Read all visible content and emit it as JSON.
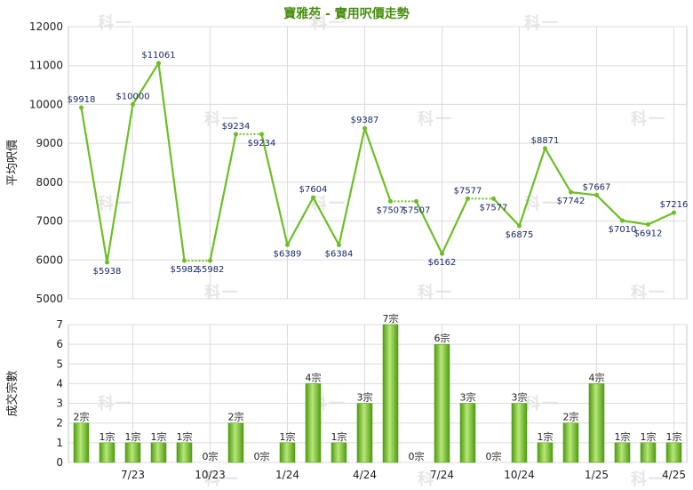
{
  "title": "寶雅苑 - 實用呎價走勢",
  "watermark": "科一",
  "colors": {
    "line": "#6cbf24",
    "dotted": "#6cbf24",
    "bar_light": "#b8e878",
    "bar_dark": "#4e9a12",
    "grid": "#dcdcdc",
    "axis_text": "#222222",
    "label_text": "#1a2a66",
    "title": "#4a8f10"
  },
  "chart_data": [
    {
      "type": "line",
      "ylabel": "平均呎價",
      "ylim": [
        5000,
        12000
      ],
      "yticks": [
        5000,
        6000,
        7000,
        8000,
        9000,
        10000,
        11000,
        12000
      ],
      "grid": true,
      "points": [
        {
          "slot": 0,
          "value": 9918,
          "label": "$9918"
        },
        {
          "slot": 1,
          "value": 5938,
          "label": "$5938"
        },
        {
          "slot": 2,
          "value": 10000,
          "label": "$10000"
        },
        {
          "slot": 3,
          "value": 11061,
          "label": "$11061"
        },
        {
          "slot": 4,
          "value": 5982,
          "label": "$5982"
        },
        {
          "slot": 5,
          "value": 5982,
          "label": "$5982",
          "carried": true
        },
        {
          "slot": 6,
          "value": 9234,
          "label": "$9234"
        },
        {
          "slot": 7,
          "value": 9234,
          "label": "$9234",
          "carried": true
        },
        {
          "slot": 8,
          "value": 6389,
          "label": "$6389"
        },
        {
          "slot": 9,
          "value": 7604,
          "label": "$7604"
        },
        {
          "slot": 10,
          "value": 6384,
          "label": "$6384"
        },
        {
          "slot": 11,
          "value": 9387,
          "label": "$9387"
        },
        {
          "slot": 12,
          "value": 7507,
          "label": "$7507"
        },
        {
          "slot": 13,
          "value": 7507,
          "label": "$7507",
          "carried": true
        },
        {
          "slot": 14,
          "value": 6162,
          "label": "$6162"
        },
        {
          "slot": 15,
          "value": 7577,
          "label": "$7577"
        },
        {
          "slot": 16,
          "value": 7577,
          "label": "$7577",
          "carried": true
        },
        {
          "slot": 17,
          "value": 6875,
          "label": "$6875"
        },
        {
          "slot": 18,
          "value": 8871,
          "label": "$8871"
        },
        {
          "slot": 19,
          "value": 7742,
          "label": "$7742"
        },
        {
          "slot": 20,
          "value": 7667,
          "label": "$7667"
        },
        {
          "slot": 21,
          "value": 7010,
          "label": "$7010"
        },
        {
          "slot": 22,
          "value": 6912,
          "label": "$6912"
        },
        {
          "slot": 23,
          "value": 7216,
          "label": "$7216"
        }
      ]
    },
    {
      "type": "bar",
      "ylabel": "成交宗數",
      "ylim": [
        0,
        7
      ],
      "yticks": [
        0,
        1,
        2,
        3,
        4,
        5,
        6,
        7
      ],
      "grid": true,
      "values": [
        2,
        1,
        1,
        1,
        1,
        0,
        2,
        0,
        1,
        4,
        1,
        3,
        7,
        0,
        6,
        3,
        0,
        3,
        1,
        2,
        4,
        1,
        1,
        1
      ],
      "value_suffix": "宗",
      "xticks": [
        {
          "slot": 2,
          "label": "7/23"
        },
        {
          "slot": 5,
          "label": "10/23"
        },
        {
          "slot": 8,
          "label": "1/24"
        },
        {
          "slot": 11,
          "label": "4/24"
        },
        {
          "slot": 14,
          "label": "7/24"
        },
        {
          "slot": 17,
          "label": "10/24"
        },
        {
          "slot": 20,
          "label": "1/25"
        },
        {
          "slot": 23,
          "label": "4/25"
        }
      ]
    }
  ]
}
